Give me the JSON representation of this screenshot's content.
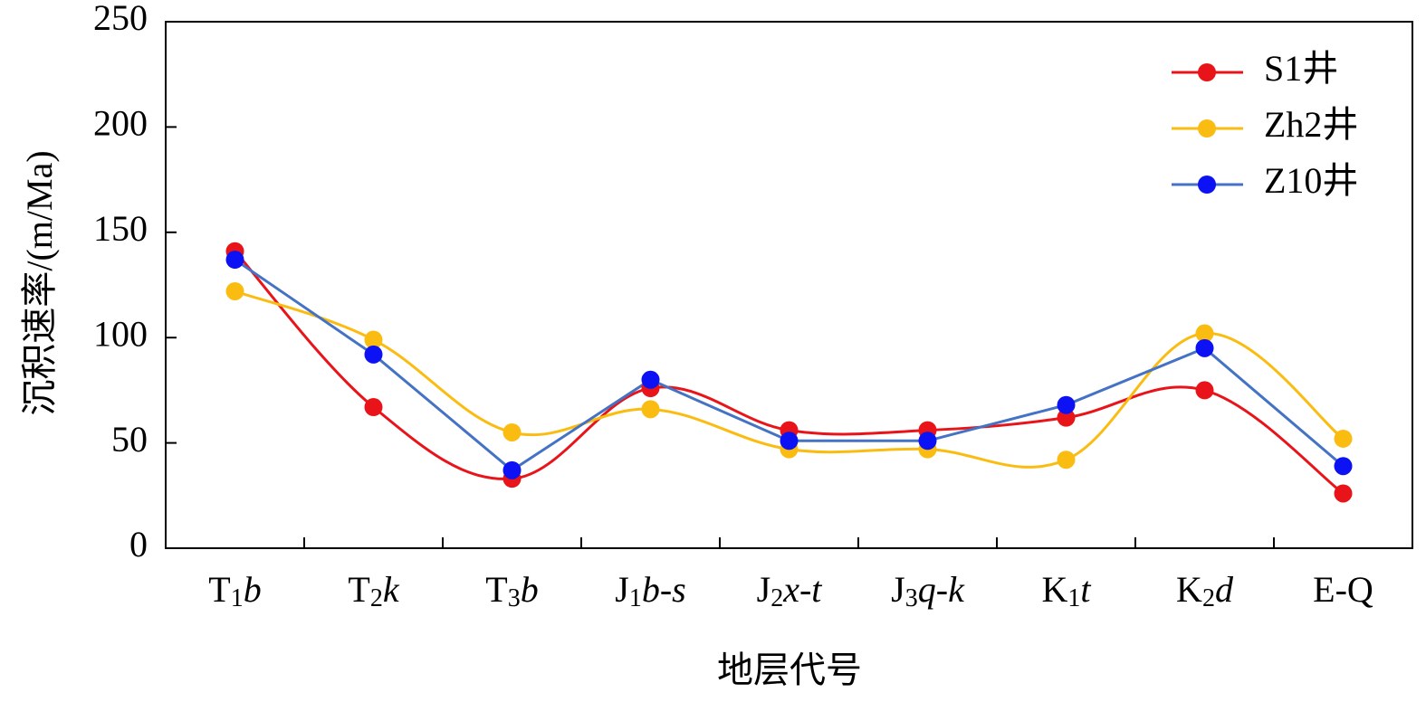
{
  "chart_data": {
    "type": "line",
    "title": "",
    "xlabel": "地层代号",
    "ylabel": "沉积速率/(m/Ma)",
    "ylim": [
      0,
      250
    ],
    "yticks": [
      "0",
      "50",
      "100",
      "150",
      "200",
      "250"
    ],
    "categories": [
      {
        "main": "T",
        "sub": "1",
        "suffix": "b"
      },
      {
        "main": "T",
        "sub": "2",
        "suffix": "k"
      },
      {
        "main": "T",
        "sub": "3",
        "suffix": "b"
      },
      {
        "main": "J",
        "sub": "1",
        "suffix": "b-s"
      },
      {
        "main": "J",
        "sub": "2",
        "suffix": "x-t"
      },
      {
        "main": "J",
        "sub": "3",
        "suffix": "q-k"
      },
      {
        "main": "K",
        "sub": "1",
        "suffix": "t"
      },
      {
        "main": "K",
        "sub": "2",
        "suffix": "d"
      },
      {
        "main": "E-Q",
        "sub": "",
        "suffix": ""
      }
    ],
    "series": [
      {
        "name": "S1井",
        "color": "#e8141a",
        "values": [
          141,
          67,
          33,
          76,
          56,
          56,
          62,
          75,
          26
        ]
      },
      {
        "name": "Zh2井",
        "color": "#fbbc12",
        "values": [
          122,
          99,
          55,
          66,
          47,
          47,
          42,
          102,
          52
        ]
      },
      {
        "name": "Z10井",
        "color": "#4472c4",
        "markerColor": "#0d12f4",
        "values": [
          137,
          92,
          37,
          80,
          51,
          51,
          68,
          95,
          39
        ]
      }
    ],
    "legend": "top-right",
    "grid": false
  }
}
